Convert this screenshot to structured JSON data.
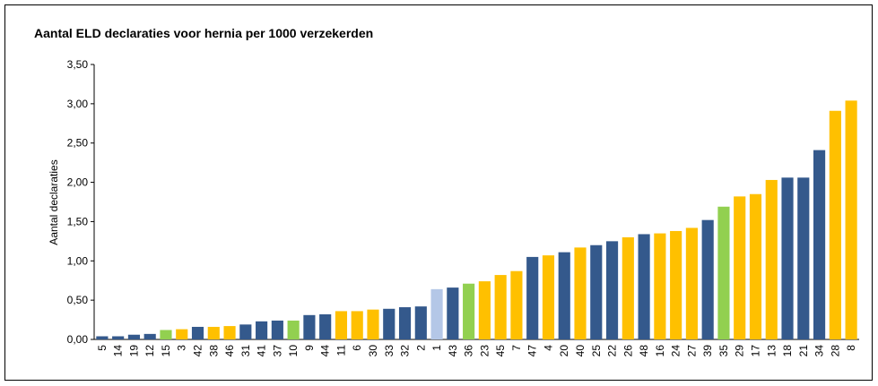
{
  "chart_data": {
    "type": "bar",
    "title": "Aantal ELD declaraties voor hernia per 1000 verzekerden",
    "y_label": "Aantal declaraties",
    "categories": [
      "5",
      "14",
      "19",
      "12",
      "15",
      "3",
      "42",
      "38",
      "46",
      "31",
      "41",
      "37",
      "10",
      "9",
      "44",
      "11",
      "6",
      "30",
      "33",
      "32",
      "2",
      "1",
      "43",
      "36",
      "23",
      "45",
      "7",
      "47",
      "4",
      "20",
      "40",
      "25",
      "22",
      "26",
      "48",
      "16",
      "24",
      "27",
      "39",
      "35",
      "29",
      "17",
      "13",
      "18",
      "21",
      "34",
      "28",
      "8"
    ],
    "values": [
      0.04,
      0.04,
      0.06,
      0.07,
      0.12,
      0.13,
      0.16,
      0.16,
      0.17,
      0.19,
      0.23,
      0.24,
      0.24,
      0.31,
      0.32,
      0.36,
      0.36,
      0.38,
      0.39,
      0.41,
      0.42,
      0.64,
      0.66,
      0.71,
      0.74,
      0.82,
      0.87,
      1.05,
      1.07,
      1.11,
      1.17,
      1.2,
      1.25,
      1.3,
      1.34,
      1.35,
      1.38,
      1.42,
      1.52,
      1.69,
      1.82,
      1.85,
      2.03,
      2.06,
      2.06,
      2.41,
      2.91,
      3.04
    ],
    "colors": [
      "#34598c",
      "#34598c",
      "#34598c",
      "#34598c",
      "#92d050",
      "#ffc000",
      "#34598c",
      "#ffc000",
      "#ffc000",
      "#34598c",
      "#34598c",
      "#34598c",
      "#92d050",
      "#34598c",
      "#34598c",
      "#ffc000",
      "#ffc000",
      "#ffc000",
      "#34598c",
      "#34598c",
      "#34598c",
      "#b4c7e7",
      "#34598c",
      "#92d050",
      "#ffc000",
      "#ffc000",
      "#ffc000",
      "#34598c",
      "#ffc000",
      "#34598c",
      "#ffc000",
      "#34598c",
      "#34598c",
      "#ffc000",
      "#34598c",
      "#ffc000",
      "#ffc000",
      "#ffc000",
      "#34598c",
      "#92d050",
      "#ffc000",
      "#ffc000",
      "#ffc000",
      "#34598c",
      "#34598c",
      "#34598c",
      "#ffc000",
      "#ffc000"
    ],
    "ylim": [
      0,
      3.5
    ],
    "yticks": [
      {
        "value": 0,
        "label": "0,00"
      },
      {
        "value": 0.5,
        "label": "0,50"
      },
      {
        "value": 1,
        "label": "1,00"
      },
      {
        "value": 1.5,
        "label": "1,50"
      },
      {
        "value": 2,
        "label": "2,00"
      },
      {
        "value": 2.5,
        "label": "2,50"
      },
      {
        "value": 3,
        "label": "3,00"
      },
      {
        "value": 3.5,
        "label": "3,50"
      }
    ],
    "grid": false
  }
}
